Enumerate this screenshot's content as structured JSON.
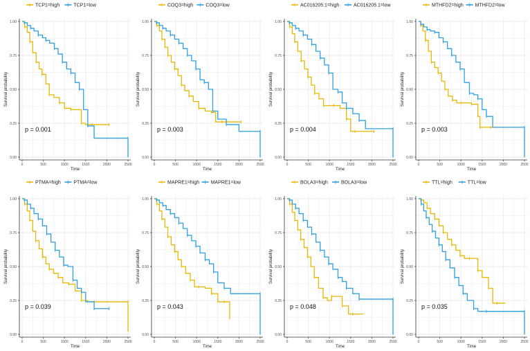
{
  "colors": {
    "high": "#E7B800",
    "low": "#2E9FDF",
    "grid": "#EBEBEB",
    "axis": "#333333"
  },
  "chart_data": [
    {
      "type": "line",
      "legend": [
        "TCP1=high",
        "TCP1=low"
      ],
      "pvalue": "p = 0.001",
      "xlabel": "Time",
      "ylabel": "Survival probability",
      "xlim": [
        0,
        2500
      ],
      "ylim": [
        0,
        1
      ],
      "xticks": [
        "0",
        "500",
        "1000",
        "1500",
        "2000",
        "2500"
      ],
      "yticks": [
        "0.00",
        "0.25",
        "0.50",
        "0.75",
        "1.00"
      ],
      "series": [
        {
          "name": "TCP1=high",
          "x": [
            0,
            60,
            120,
            180,
            250,
            330,
            400,
            470,
            560,
            640,
            750,
            880,
            1000,
            1150,
            1300,
            1400,
            1500,
            1650,
            1800,
            2050
          ],
          "y": [
            1.0,
            0.96,
            0.92,
            0.85,
            0.77,
            0.7,
            0.65,
            0.61,
            0.54,
            0.46,
            0.44,
            0.4,
            0.36,
            0.35,
            0.35,
            0.25,
            0.24,
            0.24,
            0.24,
            0.24
          ]
        },
        {
          "name": "TCP1=low",
          "x": [
            0,
            50,
            120,
            200,
            280,
            380,
            480,
            560,
            650,
            760,
            850,
            950,
            1050,
            1150,
            1250,
            1350,
            1450,
            1550,
            1700,
            2500,
            2500
          ],
          "y": [
            1.0,
            0.99,
            0.97,
            0.95,
            0.93,
            0.9,
            0.88,
            0.86,
            0.84,
            0.8,
            0.76,
            0.7,
            0.65,
            0.62,
            0.55,
            0.5,
            0.35,
            0.23,
            0.14,
            0.14,
            0.0
          ]
        }
      ]
    },
    {
      "type": "line",
      "legend": [
        "COQ3=high",
        "COQ3=low"
      ],
      "pvalue": "p = 0.003",
      "xlabel": "Time",
      "ylabel": "Survival probability",
      "xlim": [
        0,
        2500
      ],
      "ylim": [
        0,
        1
      ],
      "xticks": [
        "0",
        "500",
        "1000",
        "1500",
        "2000",
        "2500"
      ],
      "yticks": [
        "0.00",
        "0.25",
        "0.50",
        "0.75",
        "1.00"
      ],
      "series": [
        {
          "name": "COQ3=high",
          "x": [
            0,
            60,
            120,
            180,
            250,
            320,
            400,
            480,
            560,
            640,
            720,
            820,
            920,
            1050,
            1200,
            1350,
            1450,
            1600,
            1800,
            2050
          ],
          "y": [
            1.0,
            0.97,
            0.93,
            0.87,
            0.81,
            0.75,
            0.7,
            0.65,
            0.6,
            0.53,
            0.49,
            0.45,
            0.41,
            0.36,
            0.34,
            0.33,
            0.26,
            0.26,
            0.26,
            0.26
          ]
        },
        {
          "name": "COQ3=low",
          "x": [
            0,
            50,
            120,
            200,
            280,
            380,
            480,
            580,
            680,
            780,
            880,
            980,
            1080,
            1180,
            1280,
            1380,
            1500,
            1700,
            2000,
            2500,
            2500
          ],
          "y": [
            1.0,
            0.99,
            0.97,
            0.95,
            0.93,
            0.9,
            0.87,
            0.84,
            0.8,
            0.75,
            0.71,
            0.65,
            0.57,
            0.55,
            0.5,
            0.34,
            0.28,
            0.24,
            0.19,
            0.19,
            0.0
          ]
        }
      ]
    },
    {
      "type": "line",
      "legend": [
        "AC016205.1=high",
        "AC016205.1=low"
      ],
      "pvalue": "p = 0.004",
      "xlabel": "Time",
      "ylabel": "Survival probability",
      "xlim": [
        0,
        2500
      ],
      "ylim": [
        0,
        1
      ],
      "xticks": [
        "0",
        "500",
        "1000",
        "1500",
        "2000",
        "2500"
      ],
      "yticks": [
        "0.00",
        "0.25",
        "0.50",
        "0.75",
        "1.00"
      ],
      "series": [
        {
          "name": "AC016205.1=high",
          "x": [
            0,
            60,
            120,
            180,
            250,
            330,
            410,
            490,
            570,
            650,
            750,
            860,
            980,
            1100,
            1250,
            1400,
            1500,
            1600,
            1800,
            2050
          ],
          "y": [
            1.0,
            0.96,
            0.91,
            0.85,
            0.78,
            0.71,
            0.65,
            0.59,
            0.53,
            0.47,
            0.43,
            0.38,
            0.38,
            0.38,
            0.36,
            0.28,
            0.19,
            0.19,
            0.19,
            0.19
          ]
        },
        {
          "name": "AC016205.1=low",
          "x": [
            0,
            50,
            120,
            200,
            280,
            380,
            480,
            580,
            680,
            780,
            880,
            980,
            1080,
            1200,
            1300,
            1400,
            1550,
            1700,
            1850,
            2500,
            2500
          ],
          "y": [
            1.0,
            0.99,
            0.97,
            0.95,
            0.93,
            0.9,
            0.87,
            0.83,
            0.78,
            0.73,
            0.68,
            0.62,
            0.5,
            0.48,
            0.4,
            0.36,
            0.32,
            0.27,
            0.21,
            0.21,
            0.0
          ]
        }
      ]
    },
    {
      "type": "line",
      "legend": [
        "MTHFD2=high",
        "MTHFD2=low"
      ],
      "pvalue": "p = 0.003",
      "xlabel": "Time",
      "ylabel": "Survival probability",
      "xlim": [
        0,
        2500
      ],
      "ylim": [
        0,
        1
      ],
      "xticks": [
        "0",
        "500",
        "1000",
        "1500",
        "2000",
        "2500"
      ],
      "yticks": [
        "0.00",
        "0.25",
        "0.50",
        "0.75",
        "1.00"
      ],
      "series": [
        {
          "name": "MTHFD2=high",
          "x": [
            0,
            50,
            100,
            160,
            230,
            300,
            380,
            460,
            540,
            620,
            700,
            800,
            900,
            1000,
            1100,
            1250,
            1400,
            1450,
            1550,
            1700,
            2000
          ],
          "y": [
            1.0,
            0.97,
            0.93,
            0.86,
            0.78,
            0.7,
            0.66,
            0.62,
            0.56,
            0.5,
            0.45,
            0.42,
            0.4,
            0.4,
            0.4,
            0.39,
            0.3,
            0.22,
            0.22,
            0.22,
            0.22
          ]
        },
        {
          "name": "MTHFD2=low",
          "x": [
            0,
            50,
            120,
            200,
            280,
            380,
            480,
            580,
            680,
            780,
            880,
            980,
            1080,
            1200,
            1300,
            1400,
            1500,
            1600,
            1750,
            2500,
            2500
          ],
          "y": [
            1.0,
            0.98,
            0.96,
            0.94,
            0.93,
            0.92,
            0.88,
            0.85,
            0.8,
            0.75,
            0.7,
            0.65,
            0.55,
            0.47,
            0.46,
            0.43,
            0.35,
            0.3,
            0.22,
            0.22,
            0.0
          ]
        }
      ]
    },
    {
      "type": "line",
      "legend": [
        "PTMA=high",
        "PTMA=low"
      ],
      "pvalue": "p = 0.039",
      "xlabel": "Time",
      "ylabel": "Survival probability",
      "xlim": [
        0,
        2500
      ],
      "ylim": [
        0,
        1
      ],
      "xticks": [
        "0",
        "500",
        "1000",
        "1500",
        "2000",
        "2500"
      ],
      "yticks": [
        "0.00",
        "0.25",
        "0.50",
        "0.75",
        "1.00"
      ],
      "series": [
        {
          "name": "PTMA=high",
          "x": [
            0,
            60,
            120,
            180,
            250,
            320,
            400,
            480,
            560,
            640,
            740,
            850,
            960,
            1100,
            1250,
            1400,
            1550,
            1700,
            2000,
            2500,
            2500
          ],
          "y": [
            1.0,
            0.96,
            0.91,
            0.84,
            0.76,
            0.69,
            0.63,
            0.57,
            0.52,
            0.48,
            0.45,
            0.42,
            0.38,
            0.37,
            0.32,
            0.25,
            0.24,
            0.24,
            0.24,
            0.24,
            0.02
          ]
        },
        {
          "name": "PTMA=low",
          "x": [
            0,
            50,
            120,
            200,
            280,
            380,
            480,
            580,
            680,
            780,
            880,
            980,
            1080,
            1200,
            1300,
            1400,
            1500,
            1700,
            1850,
            2050
          ],
          "y": [
            1.0,
            0.99,
            0.96,
            0.93,
            0.89,
            0.85,
            0.8,
            0.74,
            0.68,
            0.62,
            0.57,
            0.51,
            0.5,
            0.4,
            0.34,
            0.31,
            0.24,
            0.19,
            0.19,
            0.19
          ]
        }
      ]
    },
    {
      "type": "line",
      "legend": [
        "MAPRE1=high",
        "MAPRE1=low"
      ],
      "pvalue": "p = 0.043",
      "xlabel": "Time",
      "ylabel": "Survival probability",
      "xlim": [
        0,
        2500
      ],
      "ylim": [
        0,
        1
      ],
      "xticks": [
        "0",
        "500",
        "1000",
        "1500",
        "2000",
        "2500"
      ],
      "yticks": [
        "0.00",
        "0.25",
        "0.50",
        "0.75",
        "1.00"
      ],
      "series": [
        {
          "name": "MAPRE1=high",
          "x": [
            0,
            60,
            120,
            180,
            250,
            320,
            400,
            480,
            560,
            640,
            740,
            850,
            950,
            1050,
            1200,
            1350,
            1500,
            1650,
            1780,
            1780
          ],
          "y": [
            1.0,
            0.96,
            0.91,
            0.85,
            0.79,
            0.72,
            0.66,
            0.61,
            0.55,
            0.5,
            0.45,
            0.4,
            0.35,
            0.35,
            0.34,
            0.3,
            0.24,
            0.24,
            0.24,
            0.12
          ]
        },
        {
          "name": "MAPRE1=low",
          "x": [
            0,
            50,
            120,
            200,
            280,
            380,
            480,
            580,
            680,
            780,
            880,
            980,
            1080,
            1200,
            1300,
            1400,
            1500,
            1650,
            1800,
            2500,
            2500
          ],
          "y": [
            1.0,
            0.99,
            0.97,
            0.95,
            0.92,
            0.89,
            0.86,
            0.82,
            0.78,
            0.73,
            0.69,
            0.65,
            0.6,
            0.55,
            0.52,
            0.46,
            0.38,
            0.34,
            0.3,
            0.3,
            0.0
          ]
        }
      ]
    },
    {
      "type": "line",
      "legend": [
        "BOLA3=high",
        "BOLA3=low"
      ],
      "pvalue": "p = 0.048",
      "xlabel": "Time",
      "ylabel": "Survival probability",
      "xlim": [
        0,
        2500
      ],
      "ylim": [
        0,
        1
      ],
      "xticks": [
        "0",
        "500",
        "1000",
        "1500",
        "2000",
        "2500"
      ],
      "yticks": [
        "0.00",
        "0.25",
        "0.50",
        "0.75",
        "1.00"
      ],
      "series": [
        {
          "name": "BOLA3=high",
          "x": [
            0,
            60,
            120,
            180,
            250,
            320,
            400,
            480,
            560,
            640,
            740,
            850,
            950,
            1050,
            1150,
            1300,
            1450,
            1550,
            1800
          ],
          "y": [
            1.0,
            0.96,
            0.9,
            0.84,
            0.77,
            0.7,
            0.64,
            0.57,
            0.5,
            0.42,
            0.34,
            0.27,
            0.25,
            0.28,
            0.28,
            0.21,
            0.15,
            0.15,
            0.15
          ]
        },
        {
          "name": "BOLA3=low",
          "x": [
            0,
            50,
            120,
            200,
            280,
            380,
            480,
            580,
            680,
            780,
            880,
            980,
            1080,
            1200,
            1300,
            1400,
            1550,
            1700,
            1850,
            2500,
            2500
          ],
          "y": [
            1.0,
            0.99,
            0.96,
            0.93,
            0.89,
            0.84,
            0.79,
            0.74,
            0.68,
            0.62,
            0.57,
            0.52,
            0.48,
            0.42,
            0.39,
            0.34,
            0.3,
            0.26,
            0.26,
            0.26,
            0.0
          ]
        }
      ]
    },
    {
      "type": "line",
      "legend": [
        "TTL=high",
        "TTL=low"
      ],
      "pvalue": "p = 0.035",
      "xlabel": "Time",
      "ylabel": "Survival probability",
      "xlim": [
        0,
        2500
      ],
      "ylim": [
        0,
        1
      ],
      "xticks": [
        "0",
        "500",
        "1000",
        "1500",
        "2000",
        "2500"
      ],
      "yticks": [
        "0.00",
        "0.25",
        "0.50",
        "0.75",
        "1.00"
      ],
      "series": [
        {
          "name": "TTL=high",
          "x": [
            0,
            50,
            120,
            200,
            280,
            380,
            480,
            580,
            680,
            780,
            880,
            980,
            1080,
            1200,
            1300,
            1400,
            1500,
            1650,
            1750,
            1850,
            2050
          ],
          "y": [
            1.0,
            0.99,
            0.97,
            0.93,
            0.89,
            0.85,
            0.8,
            0.75,
            0.7,
            0.66,
            0.62,
            0.58,
            0.56,
            0.56,
            0.56,
            0.47,
            0.42,
            0.34,
            0.23,
            0.23,
            0.23
          ]
        },
        {
          "name": "TTL=low",
          "x": [
            0,
            60,
            120,
            180,
            250,
            320,
            400,
            480,
            560,
            640,
            740,
            850,
            950,
            1050,
            1150,
            1300,
            1400,
            1600,
            1800,
            2500,
            2500
          ],
          "y": [
            1.0,
            0.96,
            0.91,
            0.86,
            0.81,
            0.76,
            0.71,
            0.66,
            0.61,
            0.55,
            0.49,
            0.42,
            0.36,
            0.3,
            0.25,
            0.19,
            0.17,
            0.17,
            0.17,
            0.17,
            0.0
          ]
        }
      ]
    }
  ]
}
